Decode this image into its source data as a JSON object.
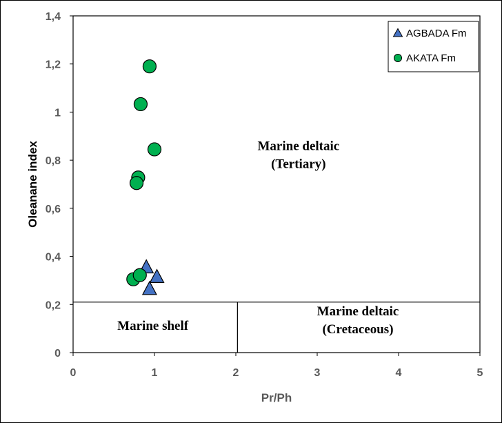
{
  "chart_data": {
    "type": "scatter",
    "xlabel": "Pr/Ph",
    "ylabel": "Oleanane index",
    "xlim": [
      0,
      5
    ],
    "ylim": [
      0,
      1.4
    ],
    "x_ticks": [
      "0",
      "1",
      "2",
      "3",
      "4",
      "5"
    ],
    "y_ticks": [
      "0",
      "0,2",
      "0,4",
      "0,6",
      "0,8",
      "1",
      "1,2",
      "1,4"
    ],
    "grid": false,
    "legend_position": "top-right",
    "divider_lines": {
      "horizontal_y": 0.21,
      "vertical_x": 2.02
    },
    "regions": [
      {
        "line1": "Marine deltaic",
        "line2": "(Tertiary)"
      },
      {
        "line1": "Marine shelf",
        "line2": ""
      },
      {
        "line1": "Marine deltaic",
        "line2": "(Cretaceous)"
      }
    ],
    "series": [
      {
        "name": "AGBADA Fm",
        "marker": "triangle",
        "color": "#4472C4",
        "points": [
          {
            "x": 0.9,
            "y": 0.355
          },
          {
            "x": 1.03,
            "y": 0.315
          },
          {
            "x": 0.94,
            "y": 0.265
          }
        ]
      },
      {
        "name": "AKATA Fm",
        "marker": "circle",
        "color": "#00B050",
        "points": [
          {
            "x": 0.94,
            "y": 1.19
          },
          {
            "x": 0.83,
            "y": 1.033
          },
          {
            "x": 1.0,
            "y": 0.845
          },
          {
            "x": 0.8,
            "y": 0.728
          },
          {
            "x": 0.78,
            "y": 0.705
          },
          {
            "x": 0.74,
            "y": 0.305
          },
          {
            "x": 0.82,
            "y": 0.322
          }
        ]
      }
    ]
  }
}
